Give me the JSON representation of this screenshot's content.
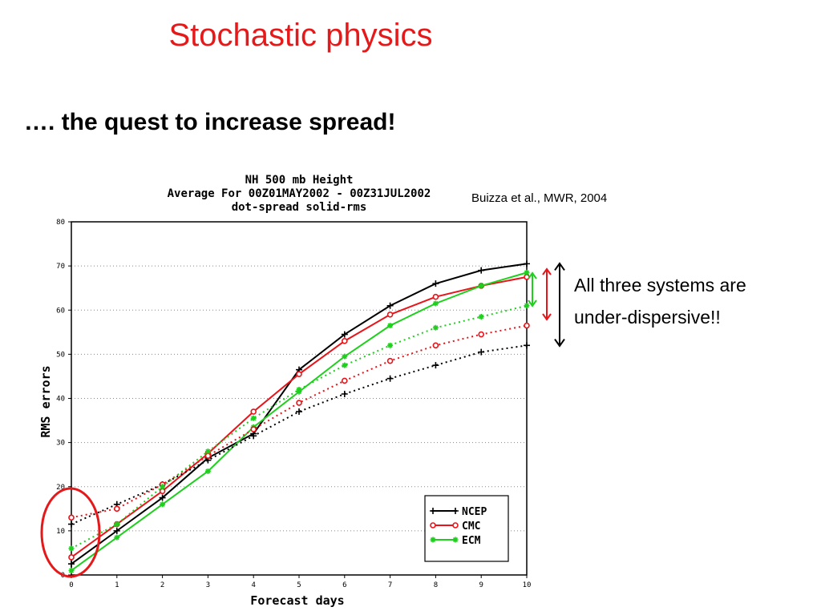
{
  "slide": {
    "title": "Stochastic physics",
    "subtitle": "…. the quest to increase spread!",
    "citation": "Buizza et al., MWR, 2004",
    "annotation_lines": [
      "All three systems are",
      "under-dispersive!!"
    ]
  },
  "chart_data": {
    "type": "line",
    "title_lines": [
      "NH 500 mb Height",
      "Average For 00Z01MAY2002 - 00Z31JUL2002",
      "dot-spread solid-rms"
    ],
    "xlabel": "Forecast days",
    "ylabel": "RMS errors",
    "xlim": [
      0,
      10
    ],
    "ylim": [
      0,
      80
    ],
    "x": [
      0,
      1,
      2,
      3,
      4,
      5,
      6,
      7,
      8,
      9,
      10
    ],
    "x_ticks": [
      "0",
      "1",
      "2",
      "3",
      "4",
      "5",
      "6",
      "7",
      "8",
      "9",
      "10"
    ],
    "y_ticks": [
      "0",
      "10",
      "20",
      "30",
      "40",
      "50",
      "60",
      "70",
      "80"
    ],
    "grid": "horizontal dotted",
    "legend_position": "bottom-right",
    "series": [
      {
        "name": "NCEP",
        "color": "#000000",
        "marker": "plus",
        "style": "solid",
        "values": [
          2.5,
          10,
          17.5,
          26.5,
          32,
          46.5,
          54.5,
          61,
          66,
          69,
          70.5
        ]
      },
      {
        "name": "CMC",
        "color": "#e8141a",
        "marker": "circle",
        "style": "solid",
        "values": [
          4,
          11.5,
          19,
          27.5,
          37,
          45.5,
          53,
          59,
          63,
          65.5,
          67.5
        ]
      },
      {
        "name": "ECM",
        "color": "#1ecf1e",
        "marker": "star",
        "style": "solid",
        "values": [
          1,
          8.5,
          16,
          23.5,
          33.5,
          41.5,
          49.5,
          56.5,
          61.5,
          65.5,
          68.5
        ]
      },
      {
        "color": "#000000",
        "marker": "plus",
        "style": "dotted",
        "values": [
          11.5,
          16,
          20.5,
          26,
          31.5,
          37,
          41,
          44.5,
          47.5,
          50.5,
          52
        ]
      },
      {
        "color": "#e8141a",
        "marker": "circle",
        "style": "dotted",
        "values": [
          13,
          15,
          20.5,
          27,
          33,
          39,
          44,
          48.5,
          52,
          54.5,
          56.5
        ]
      },
      {
        "color": "#1ecf1e",
        "marker": "star",
        "style": "dotted",
        "values": [
          6,
          11.5,
          20,
          28,
          35.5,
          42,
          47.5,
          52,
          56,
          58.5,
          61
        ]
      }
    ],
    "legend": [
      {
        "label": "NCEP",
        "color": "#000000",
        "marker": "plus"
      },
      {
        "label": "CMC",
        "color": "#e8141a",
        "marker": "circle"
      },
      {
        "label": "ECM",
        "color": "#1ecf1e",
        "marker": "star"
      }
    ]
  },
  "colors": {
    "title_red": "#e5191a",
    "highlight_circle": "#e5191a",
    "arrow_green": "#1ecf1e",
    "arrow_red": "#e8141a",
    "arrow_black": "#000000"
  }
}
